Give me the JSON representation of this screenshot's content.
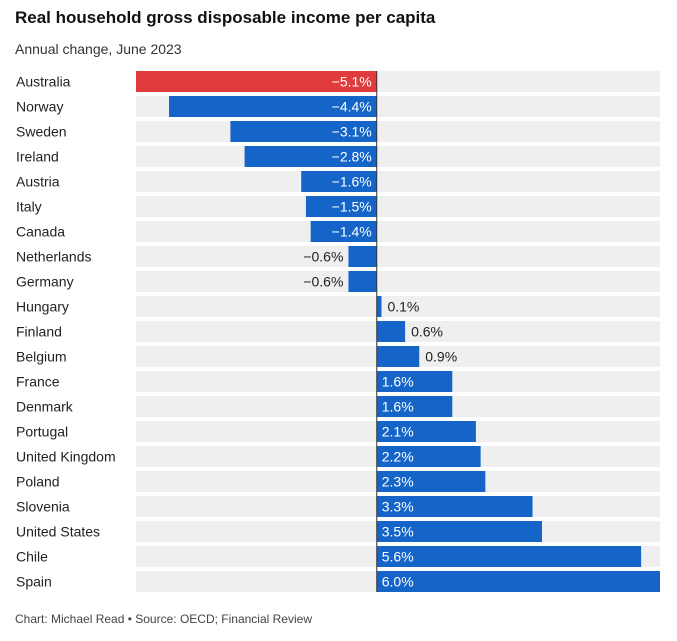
{
  "title": "Real household gross disposable income per capita",
  "subtitle": "Annual change, June 2023",
  "source": "Chart: Michael Read • Source: OECD; Financial Review",
  "colors": {
    "negative_highlight": "#e03c3c",
    "bar": "#1565c8",
    "row_background": "#efefef",
    "zero_line": "#333333",
    "label_inside": "#ffffff",
    "label_outside": "#222222"
  },
  "chart_data": {
    "type": "bar",
    "orientation": "horizontal",
    "highlight_category": "Australia",
    "categories": [
      "Australia",
      "Norway",
      "Sweden",
      "Ireland",
      "Austria",
      "Italy",
      "Canada",
      "Netherlands",
      "Germany",
      "Hungary",
      "Finland",
      "Belgium",
      "France",
      "Denmark",
      "Portugal",
      "United Kingdom",
      "Poland",
      "Slovenia",
      "United States",
      "Chile",
      "Spain"
    ],
    "values": [
      -5.1,
      -4.4,
      -3.1,
      -2.8,
      -1.6,
      -1.5,
      -1.4,
      -0.6,
      -0.6,
      0.1,
      0.6,
      0.9,
      1.6,
      1.6,
      2.1,
      2.2,
      2.3,
      3.3,
      3.5,
      5.6,
      6.0
    ],
    "value_labels": [
      "−5.1%",
      "−4.4%",
      "−3.1%",
      "−2.8%",
      "−1.6%",
      "−1.5%",
      "−1.4%",
      "−0.6%",
      "−0.6%",
      "0.1%",
      "0.6%",
      "0.9%",
      "1.6%",
      "1.6%",
      "2.1%",
      "2.2%",
      "2.3%",
      "3.3%",
      "3.5%",
      "5.6%",
      "6.0%"
    ],
    "xlim": [
      -5.1,
      6.0
    ],
    "grid": false
  }
}
